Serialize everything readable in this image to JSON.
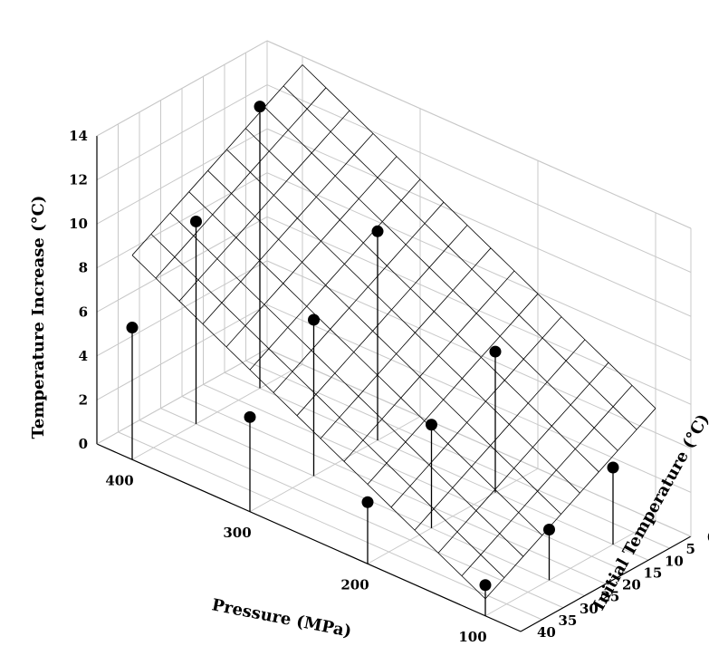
{
  "chart_data": {
    "type": "scatter3d-surface",
    "xlabel": "Pressure (MPa)",
    "ylabel": "Initial Temperature (°C)",
    "zlabel": "Temperature Increase (°C)",
    "xlim": [
      70,
      430
    ],
    "ylim": [
      0,
      40
    ],
    "zlim": [
      0,
      14
    ],
    "x_ticks": [
      "400",
      "300",
      "200",
      "100"
    ],
    "y_ticks": [
      "0",
      "5",
      "10",
      "15",
      "20",
      "25",
      "30",
      "35",
      "40"
    ],
    "z_ticks": [
      "0",
      "2",
      "4",
      "6",
      "8",
      "10",
      "12",
      "14"
    ],
    "grid": true,
    "points": [
      {
        "x": 400,
        "y": 10,
        "z": 12.8
      },
      {
        "x": 400,
        "y": 25,
        "z": 9.2
      },
      {
        "x": 400,
        "y": 40,
        "z": 6.0
      },
      {
        "x": 300,
        "y": 10,
        "z": 9.5
      },
      {
        "x": 300,
        "y": 25,
        "z": 7.1
      },
      {
        "x": 300,
        "y": 40,
        "z": 4.3
      },
      {
        "x": 200,
        "y": 10,
        "z": 6.4
      },
      {
        "x": 200,
        "y": 25,
        "z": 4.7
      },
      {
        "x": 200,
        "y": 40,
        "z": 2.8
      },
      {
        "x": 100,
        "y": 10,
        "z": 3.5
      },
      {
        "x": 100,
        "y": 25,
        "z": 2.3
      },
      {
        "x": 100,
        "y": 40,
        "z": 1.4
      }
    ],
    "surface": {
      "description_model": "z = a + b*x + c*y",
      "a": 2.27,
      "b": 0.02837,
      "c": -0.1083
    }
  }
}
